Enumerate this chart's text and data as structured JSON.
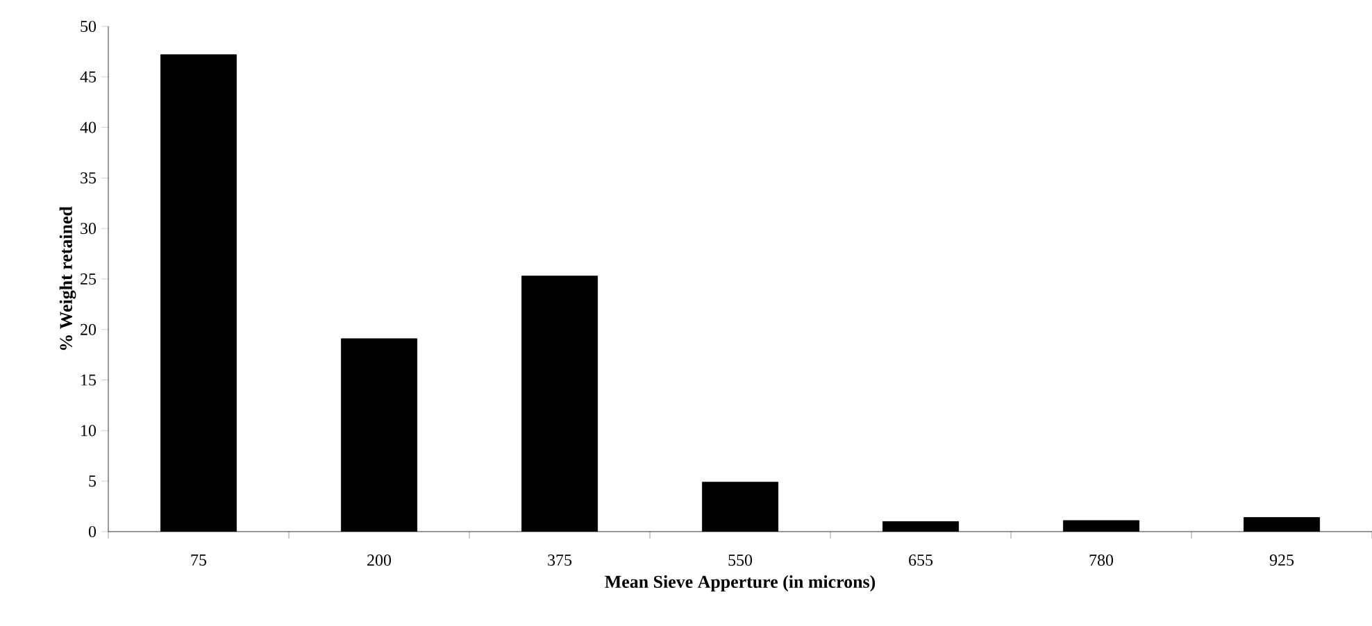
{
  "chart_data": {
    "type": "bar",
    "xlabel": "Mean Sieve Apperture (in microns)",
    "ylabel": "% Weight retained",
    "categories": [
      "75",
      "200",
      "375",
      "550",
      "655",
      "780",
      "925"
    ],
    "values": [
      47.2,
      19.1,
      25.3,
      4.9,
      1.0,
      1.1,
      1.4
    ],
    "color": "#000000",
    "ylim": [
      0,
      50
    ],
    "yticks": [
      0,
      5,
      10,
      15,
      20,
      25,
      30,
      35,
      40,
      45,
      50
    ],
    "grid": false
  }
}
